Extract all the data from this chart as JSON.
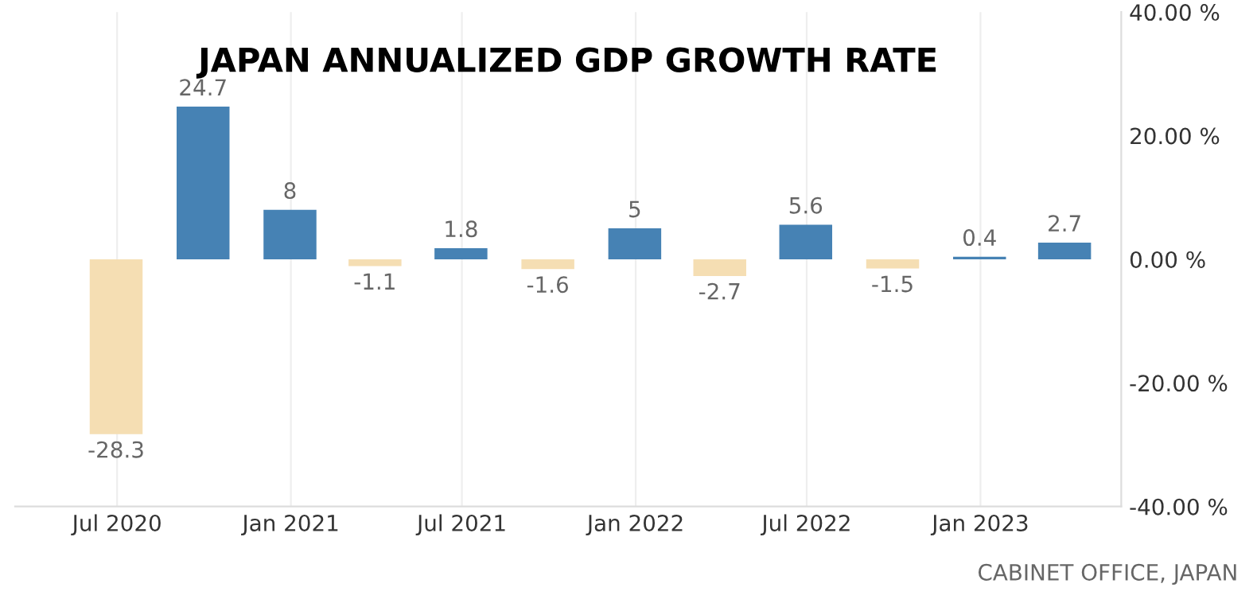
{
  "chart_data": {
    "type": "bar",
    "title": "JAPAN ANNUALIZED GDP GROWTH RATE",
    "x": [
      "2020-06-30",
      "2020-09-30",
      "2020-12-31",
      "2021-03-31",
      "2021-06-30",
      "2021-09-30",
      "2021-12-31",
      "2022-03-31",
      "2022-06-30",
      "2022-09-30",
      "2022-12-31",
      "2023-03-31"
    ],
    "values": [
      -28.3,
      24.7,
      8,
      -1.1,
      1.8,
      -1.6,
      5,
      -2.7,
      5.6,
      -1.5,
      0.4,
      2.7
    ],
    "colors": [
      "#f5deb3",
      "#4682b4",
      "#4682b4",
      "#f5deb3",
      "#4682b4",
      "#f5deb3",
      "#4682b4",
      "#f5deb3",
      "#4682b4",
      "#f5deb3",
      "#4682b4",
      "#4682b4"
    ],
    "data_labels": true,
    "xlim": [
      "2020-03-15",
      "2023-05-30"
    ],
    "xticks": [
      {
        "value": "2020-07-01",
        "label": "Jul 2020"
      },
      {
        "value": "2021-01-01",
        "label": "Jan 2021"
      },
      {
        "value": "2021-07-01",
        "label": "Jul 2021"
      },
      {
        "value": "2022-01-01",
        "label": "Jan 2022"
      },
      {
        "value": "2022-07-01",
        "label": "Jul 2022"
      },
      {
        "value": "2023-01-01",
        "label": "Jan 2023"
      }
    ],
    "ylim": [
      -40,
      40
    ],
    "yticks": [
      {
        "value": -40,
        "label": "-40.00 %"
      },
      {
        "value": -20,
        "label": "-20.00 %"
      },
      {
        "value": 0,
        "label": "0.00 %"
      },
      {
        "value": 20,
        "label": "20.00 %"
      },
      {
        "value": 40,
        "label": "40.00 %"
      }
    ],
    "grid": "x",
    "annotations": [
      "CABINET OFFICE, JAPAN"
    ]
  }
}
